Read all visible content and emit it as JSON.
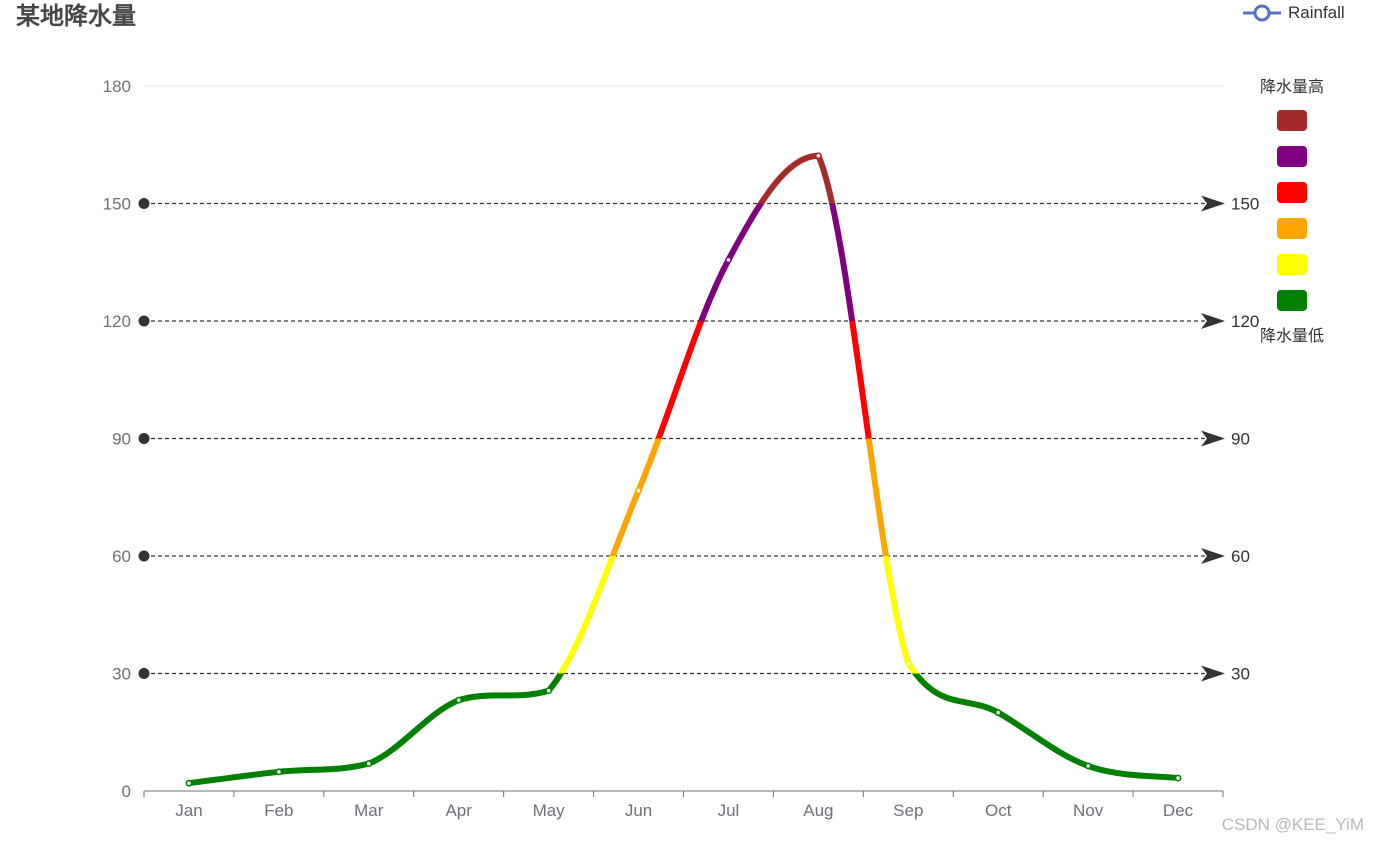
{
  "chart_data": {
    "type": "line",
    "title": "某地降水量",
    "categories": [
      "Jan",
      "Feb",
      "Mar",
      "Apr",
      "May",
      "Jun",
      "Jul",
      "Aug",
      "Sep",
      "Oct",
      "Nov",
      "Dec"
    ],
    "series": [
      {
        "name": "Rainfall",
        "values": [
          2.0,
          4.9,
          7.0,
          23.2,
          25.6,
          76.7,
          135.6,
          162.2,
          32.6,
          20.0,
          6.4,
          3.3
        ]
      }
    ],
    "ylim": [
      0,
      180
    ],
    "yticks": [
      0,
      30,
      60,
      90,
      120,
      150,
      180
    ],
    "mark_lines": [
      30,
      60,
      90,
      120,
      150
    ],
    "smooth": true,
    "legend_position": "top-right",
    "visual_map": {
      "text_high": "降水量高",
      "text_low": "降水量低",
      "pieces": [
        {
          "gt": 150,
          "color": "#A52A2A"
        },
        {
          "gt": 120,
          "lte": 150,
          "color": "#800080"
        },
        {
          "gt": 90,
          "lte": 120,
          "color": "#FF0000"
        },
        {
          "gt": 60,
          "lte": 90,
          "color": "#FFA500"
        },
        {
          "gt": 30,
          "lte": 60,
          "color": "#FFFF00"
        },
        {
          "lte": 30,
          "color": "#008000"
        }
      ]
    },
    "legend_color": "#5470c6"
  },
  "watermark": "CSDN @KEE_YiM"
}
